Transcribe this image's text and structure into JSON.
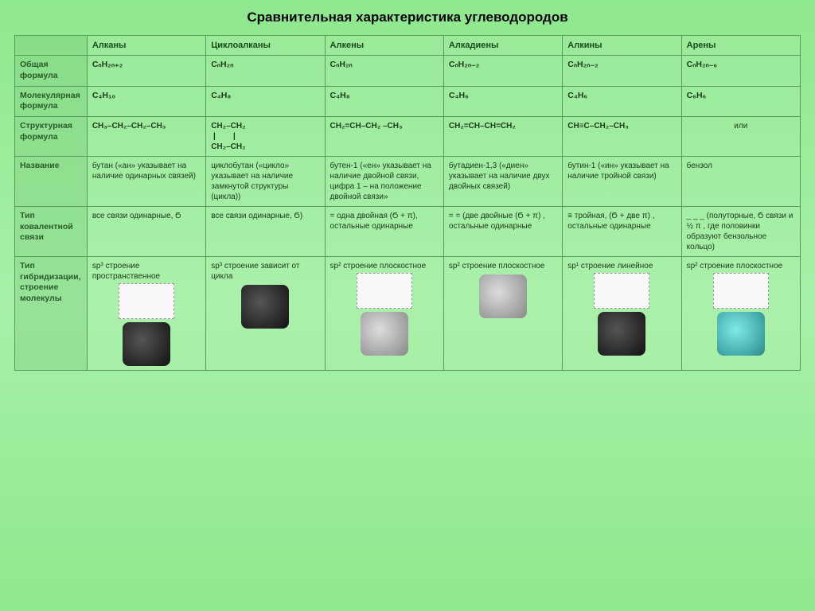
{
  "title": "Сравнительная характеристика углеводородов",
  "columns": [
    "Алканы",
    "Циклоалканы",
    "Алкены",
    "Алкадиены",
    "Алкины",
    "Арены"
  ],
  "rows": {
    "general_formula": {
      "label": "Общая формула",
      "cells": [
        "CₙH₂ₙ₊₂",
        "CₙH₂ₙ",
        "CₙH₂ₙ",
        "CₙH₂ₙ₋₂",
        "CₙH₂ₙ₋₂",
        "CₙH₂ₙ₋₆"
      ]
    },
    "molecular_formula": {
      "label": "Молекулярная формула",
      "cells": [
        "C₄H₁₀",
        "C₄H₈",
        "C₄H₈",
        "C₄H₆",
        "C₄H₆",
        "C₆H₆"
      ]
    },
    "structural_formula": {
      "label": "Структурная формула",
      "cells": [
        "CH₃–CH₂–CH₂–CH₃",
        "CH₂–CH₂\n |        |\nCH₂–CH₂",
        "CH₂=CH–CH₂ –CH₃",
        "CH₂=CH–CH=CH₂",
        "CH≡C–CH₂–CH₃",
        "или"
      ]
    },
    "name": {
      "label": "Название",
      "cells": [
        "бутан («ан» указывает на наличие одинарных связей)",
        "циклобутан («цикло» указывает на наличие замкнутой структуры (цикла))",
        "бутен-1 («ен» указывает на наличие двойной связи, цифра 1 – на положение двойной связи»",
        "бутадиен-1,3 («диен» указывает на наличие двух двойных связей)",
        "бутин-1 («ин» указывает на наличие тройной связи)",
        "бензол"
      ]
    },
    "bond_type": {
      "label": "Тип ковалентной связи",
      "cells": [
        "все связи одинарные, Ϭ",
        "все связи одинарные, Ϭ)",
        "= одна двойная (Ϭ + π), остальные одинарные",
        "= = (две двойные (Ϭ + π) , остальные одинарные",
        "≡ тройная, (Ϭ + две π) , остальные одинарные",
        "_ _ _ (полуторные, Ϭ связи и ½ π , где половинки образуют бензольное кольцо)"
      ]
    },
    "hybridization": {
      "label": "Тип гибридизации, строение молекулы",
      "cells": [
        "sp³ строение пространственное",
        "sp³ строение зависит от цикла",
        "sp² строение плоскостное",
        "sp² строение плоскостное",
        "sp¹ строение линейное",
        "sp² строение плоскостное"
      ]
    }
  },
  "style": {
    "background_gradient": [
      "#8ee88e",
      "#a8f0a8"
    ],
    "border_color": "#5a9a5a",
    "header_text_color": "#2a5a2a",
    "cell_text_color": "#1a3a1a",
    "formula_color": "#1a4a6a",
    "title_fontsize": 17,
    "cell_fontsize": 10.5
  }
}
